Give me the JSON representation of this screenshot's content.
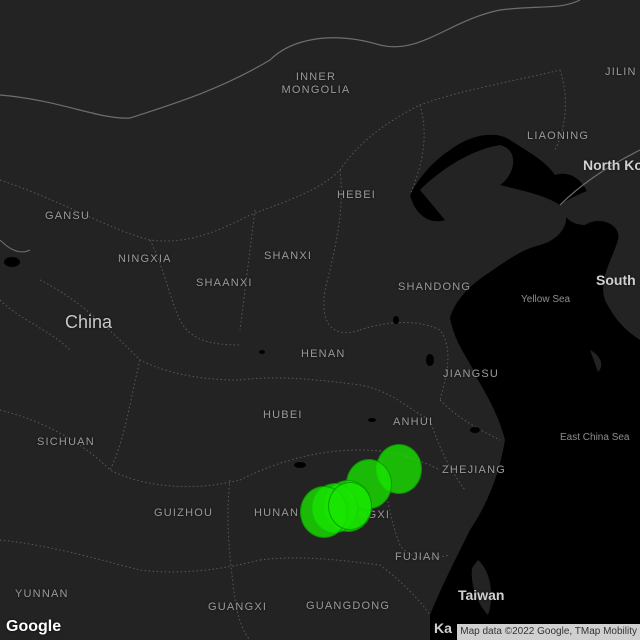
{
  "map": {
    "country_label": "China",
    "province_labels": [
      {
        "text": "INNER MONGOLIA"
      },
      {
        "text": "JILIN"
      },
      {
        "text": "LIAONING"
      },
      {
        "text": "HEBEI"
      },
      {
        "text": "GANSU"
      },
      {
        "text": "NINGXIA"
      },
      {
        "text": "SHANXI"
      },
      {
        "text": "SHAANXI"
      },
      {
        "text": "SHANDONG"
      },
      {
        "text": "HENAN"
      },
      {
        "text": "JIANGSU"
      },
      {
        "text": "ANHUI"
      },
      {
        "text": "HUBEI"
      },
      {
        "text": "SICHUAN"
      },
      {
        "text": "ZHEJIANG"
      },
      {
        "text": "GUIZHOU"
      },
      {
        "text": "HUNAN"
      },
      {
        "text": "JIANGXI"
      },
      {
        "text": "FUJIAN"
      },
      {
        "text": "YUNNAN"
      },
      {
        "text": "GUANGXI"
      },
      {
        "text": "GUANGDONG"
      }
    ],
    "neighbor_labels": {
      "north_korea": "North Ko",
      "south_korea": "South",
      "taiwan": "Taiwan",
      "partial_bottom": "Ka"
    },
    "sea_labels": {
      "yellow_sea": "Yellow Sea",
      "east_china_sea": "East China Sea"
    },
    "marker_color": "#18e600",
    "land_color": "#222222",
    "water_color": "#000000",
    "marker_count": 6
  },
  "footer": {
    "logo": "Google",
    "attribution": "Map data ©2022 Google, TMap Mobility"
  }
}
